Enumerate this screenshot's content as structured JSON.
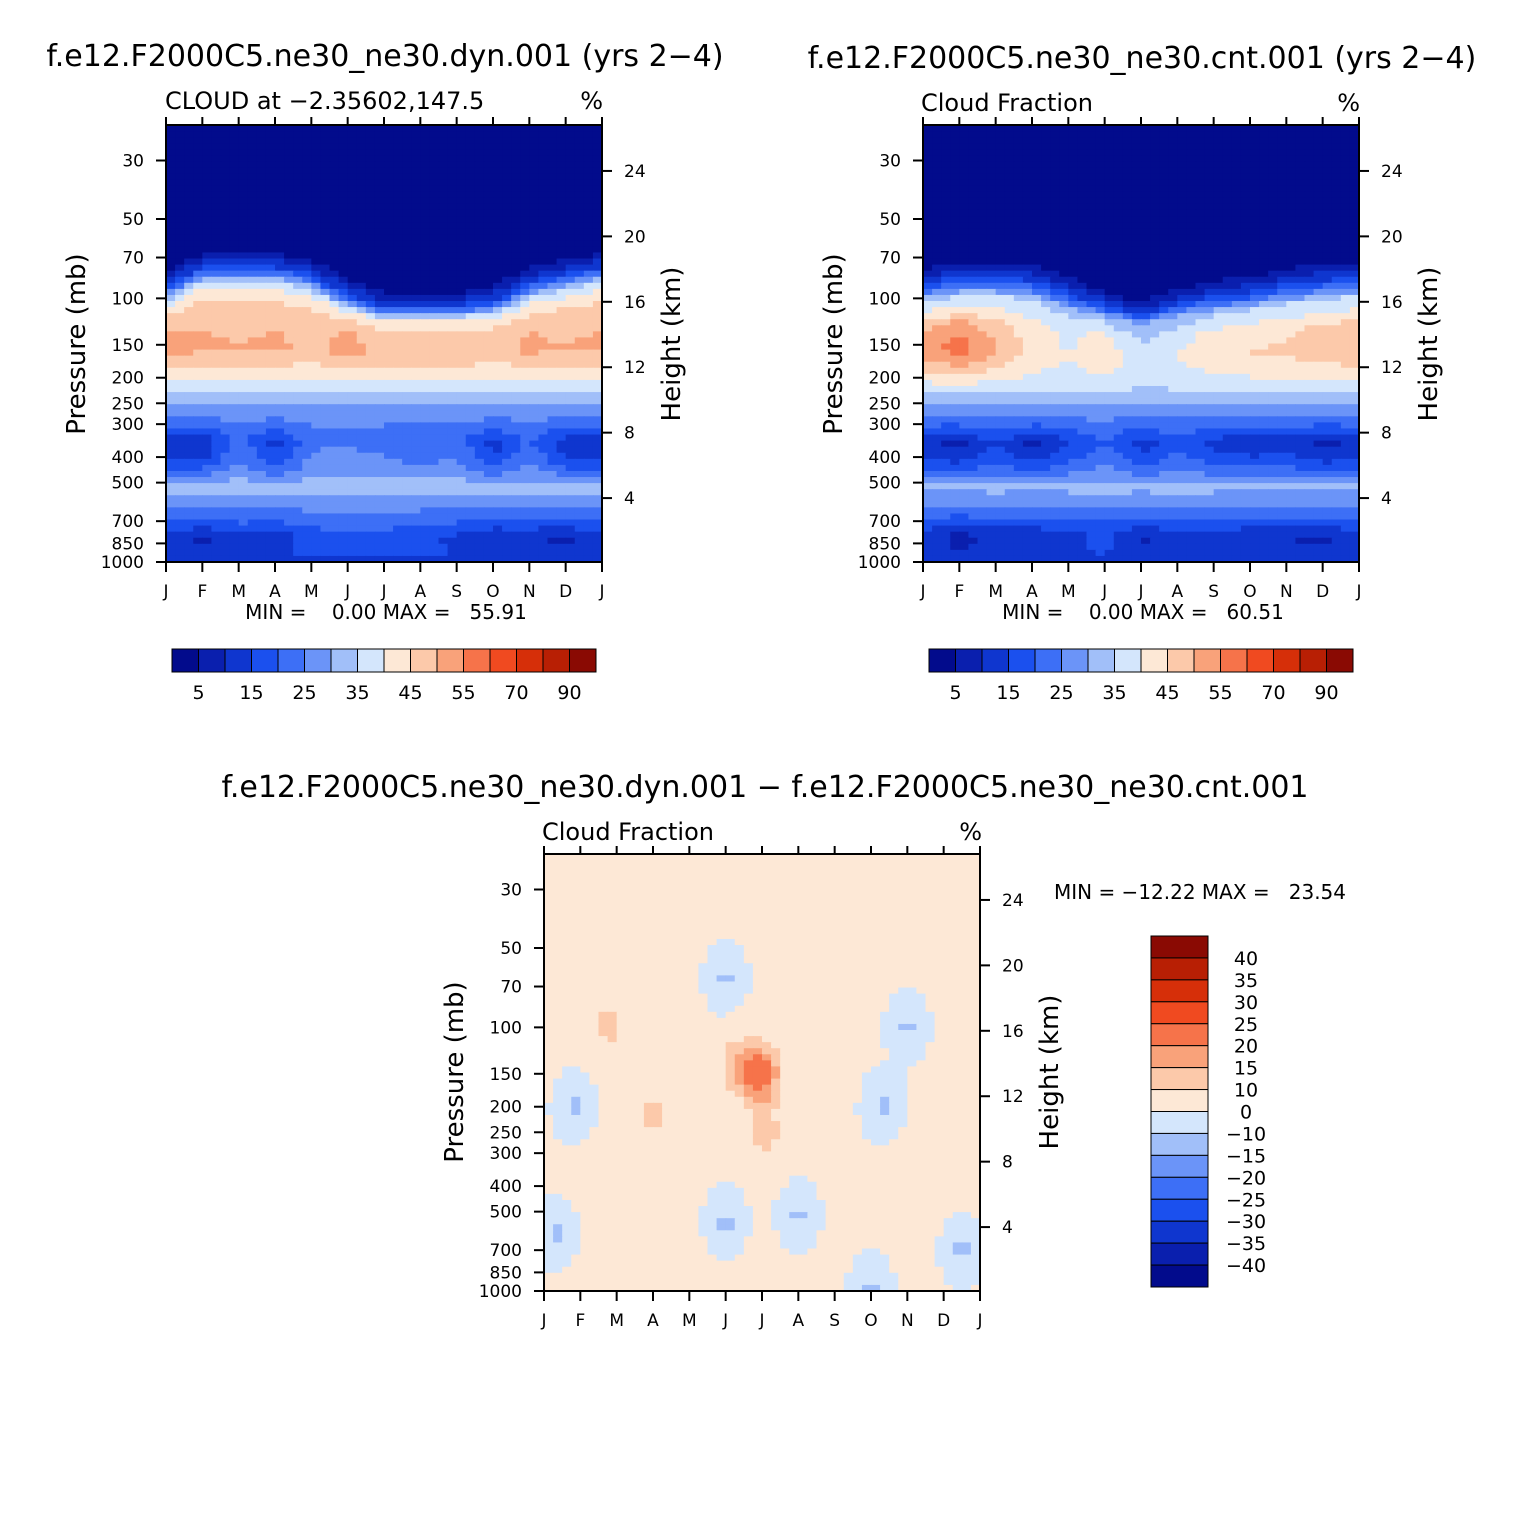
{
  "chart_data": [
    {
      "type": "heatmap",
      "id": "dyn",
      "case_title": "f.e12.F2000C5.ne30_ne30.dyn.001 (yrs 2−4)",
      "left_string": "CLOUD at −2.35602,147.5",
      "right_string": "%",
      "ylabel": "Pressure (mb)",
      "y2label": "Height (km)",
      "pressure_ticks": [
        "30",
        "50",
        "70",
        "100",
        "150",
        "200",
        "250",
        "300",
        "400",
        "500",
        "700",
        "850",
        "1000"
      ],
      "height_ticks": [
        "24",
        "20",
        "16",
        "12",
        "8",
        "4"
      ],
      "month_ticks": [
        "J",
        "F",
        "M",
        "A",
        "M",
        "J",
        "J",
        "A",
        "S",
        "O",
        "N",
        "D",
        "J"
      ],
      "min_max": "MIN =    0.00 MAX =   55.91",
      "colorbar_labels": [
        "5",
        "15",
        "25",
        "35",
        "45",
        "55",
        "70",
        "90"
      ],
      "levels": [
        5,
        10,
        15,
        20,
        25,
        30,
        35,
        40,
        45,
        50,
        55,
        60,
        70,
        80,
        90
      ],
      "min": 0.0,
      "max": 55.91,
      "profile": [
        {
          "p": 30,
          "v": 0
        },
        {
          "p": 60,
          "v": 0
        },
        {
          "p": 75,
          "v": 2
        },
        {
          "p": 90,
          "v": 15
        },
        {
          "p": 105,
          "v": 38
        },
        {
          "p": 125,
          "v": 47
        },
        {
          "p": 160,
          "v": 48
        },
        {
          "p": 200,
          "v": 40
        },
        {
          "p": 250,
          "v": 30
        },
        {
          "p": 350,
          "v": 18
        },
        {
          "p": 450,
          "v": 25
        },
        {
          "p": 520,
          "v": 33
        },
        {
          "p": 650,
          "v": 24
        },
        {
          "p": 800,
          "v": 14
        },
        {
          "p": 950,
          "v": 15
        },
        {
          "p": 1000,
          "v": 12
        }
      ],
      "cap_shape": [
        [
          0,
          0
        ],
        [
          1,
          -5
        ],
        [
          2,
          -5
        ],
        [
          3,
          -5
        ],
        [
          4,
          -3
        ],
        [
          5,
          2
        ],
        [
          6,
          6
        ],
        [
          7,
          6
        ],
        [
          8,
          6
        ],
        [
          9,
          4
        ],
        [
          10,
          -1
        ],
        [
          11,
          -3
        ],
        [
          12,
          -5
        ]
      ],
      "upper_shape": [
        [
          0,
          3
        ],
        [
          1,
          3
        ],
        [
          2,
          2
        ],
        [
          3,
          3
        ],
        [
          4,
          1
        ],
        [
          5,
          4
        ],
        [
          6,
          0
        ],
        [
          7,
          2
        ],
        [
          8,
          1
        ],
        [
          9,
          -1
        ],
        [
          10,
          3
        ],
        [
          11,
          2
        ],
        [
          12,
          3
        ]
      ],
      "mid_shape": [
        [
          0,
          -8
        ],
        [
          1,
          -8
        ],
        [
          2,
          4
        ],
        [
          3,
          -6
        ],
        [
          4,
          5
        ],
        [
          5,
          6
        ],
        [
          6,
          4
        ],
        [
          7,
          2
        ],
        [
          8,
          4
        ],
        [
          9,
          -6
        ],
        [
          10,
          3
        ],
        [
          11,
          -7
        ],
        [
          12,
          -8
        ]
      ],
      "low_shape": [
        [
          0,
          0
        ],
        [
          1,
          -5
        ],
        [
          2,
          0
        ],
        [
          3,
          -2
        ],
        [
          4,
          3
        ],
        [
          5,
          5
        ],
        [
          6,
          4
        ],
        [
          7,
          2
        ],
        [
          8,
          0
        ],
        [
          9,
          -4
        ],
        [
          10,
          -3
        ],
        [
          11,
          -5
        ],
        [
          12,
          0
        ]
      ]
    },
    {
      "type": "heatmap",
      "id": "cnt",
      "case_title": "f.e12.F2000C5.ne30_ne30.cnt.001 (yrs 2−4)",
      "left_string": "Cloud Fraction",
      "right_string": "%",
      "ylabel": "Pressure (mb)",
      "y2label": "Height (km)",
      "pressure_ticks": [
        "30",
        "50",
        "70",
        "100",
        "150",
        "200",
        "250",
        "300",
        "400",
        "500",
        "700",
        "850",
        "1000"
      ],
      "height_ticks": [
        "24",
        "20",
        "16",
        "12",
        "8",
        "4"
      ],
      "month_ticks": [
        "J",
        "F",
        "M",
        "A",
        "M",
        "J",
        "J",
        "A",
        "S",
        "O",
        "N",
        "D",
        "J"
      ],
      "min_max": "MIN =    0.00 MAX =   60.51",
      "colorbar_labels": [
        "5",
        "15",
        "25",
        "35",
        "45",
        "55",
        "70",
        "90"
      ],
      "levels": [
        5,
        10,
        15,
        20,
        25,
        30,
        35,
        40,
        45,
        50,
        55,
        60,
        70,
        80,
        90
      ],
      "min": 0.0,
      "max": 60.51,
      "profile": [
        {
          "p": 30,
          "v": 0
        },
        {
          "p": 60,
          "v": 0
        },
        {
          "p": 75,
          "v": 3
        },
        {
          "p": 90,
          "v": 16
        },
        {
          "p": 105,
          "v": 35
        },
        {
          "p": 130,
          "v": 44
        },
        {
          "p": 160,
          "v": 46
        },
        {
          "p": 200,
          "v": 40
        },
        {
          "p": 250,
          "v": 30
        },
        {
          "p": 350,
          "v": 16
        },
        {
          "p": 450,
          "v": 24
        },
        {
          "p": 520,
          "v": 32
        },
        {
          "p": 650,
          "v": 22
        },
        {
          "p": 800,
          "v": 13
        },
        {
          "p": 950,
          "v": 14
        },
        {
          "p": 1000,
          "v": 12
        }
      ],
      "cap_shape": [
        [
          0,
          0
        ],
        [
          1,
          -2
        ],
        [
          2,
          -2
        ],
        [
          3,
          -1
        ],
        [
          4,
          2
        ],
        [
          5,
          6
        ],
        [
          6,
          9
        ],
        [
          7,
          5
        ],
        [
          8,
          3
        ],
        [
          9,
          2
        ],
        [
          10,
          0
        ],
        [
          11,
          -1
        ],
        [
          12,
          -2
        ]
      ],
      "upper_shape": [
        [
          0,
          6
        ],
        [
          1,
          12
        ],
        [
          2,
          4
        ],
        [
          3,
          -2
        ],
        [
          4,
          -6
        ],
        [
          5,
          -2
        ],
        [
          6,
          -10
        ],
        [
          7,
          -6
        ],
        [
          8,
          -3
        ],
        [
          9,
          -1
        ],
        [
          10,
          0
        ],
        [
          11,
          2
        ],
        [
          12,
          4
        ]
      ],
      "mid_shape": [
        [
          0,
          -6
        ],
        [
          1,
          -8
        ],
        [
          2,
          -1
        ],
        [
          3,
          -8
        ],
        [
          4,
          -2
        ],
        [
          5,
          4
        ],
        [
          6,
          -4
        ],
        [
          7,
          2
        ],
        [
          8,
          -3
        ],
        [
          9,
          -5
        ],
        [
          10,
          -4
        ],
        [
          11,
          -8
        ],
        [
          12,
          -6
        ]
      ],
      "low_shape": [
        [
          0,
          0
        ],
        [
          1,
          -5
        ],
        [
          2,
          -2
        ],
        [
          3,
          -2
        ],
        [
          4,
          0
        ],
        [
          5,
          3
        ],
        [
          6,
          -4
        ],
        [
          7,
          0
        ],
        [
          8,
          0
        ],
        [
          9,
          -2
        ],
        [
          10,
          -3
        ],
        [
          11,
          -4
        ],
        [
          12,
          0
        ]
      ]
    },
    {
      "type": "heatmap",
      "id": "diff",
      "case_title": "f.e12.F2000C5.ne30_ne30.dyn.001 − f.e12.F2000C5.ne30_ne30.cnt.001",
      "left_string": "Cloud Fraction",
      "right_string": "%",
      "ylabel": "Pressure (mb)",
      "y2label": "Height (km)",
      "pressure_ticks": [
        "30",
        "50",
        "70",
        "100",
        "150",
        "200",
        "250",
        "300",
        "400",
        "500",
        "700",
        "850",
        "1000"
      ],
      "height_ticks": [
        "24",
        "20",
        "16",
        "12",
        "8",
        "4"
      ],
      "month_ticks": [
        "J",
        "F",
        "M",
        "A",
        "M",
        "J",
        "J",
        "A",
        "S",
        "O",
        "N",
        "D",
        "J"
      ],
      "min_max": "MIN = −12.22 MAX =   23.54",
      "colorbar_labels": [
        "40",
        "35",
        "30",
        "25",
        "20",
        "15",
        "10",
        "0",
        "−10",
        "−15",
        "−20",
        "−25",
        "−30",
        "−35",
        "−40"
      ],
      "levels": [
        -40,
        -35,
        -30,
        -25,
        -20,
        -15,
        -10,
        0,
        10,
        15,
        20,
        25,
        30,
        35,
        40
      ],
      "min": -12.22,
      "max": 23.54,
      "anomalies": [
        {
          "m": 6.0,
          "p": 150,
          "v": 22
        },
        {
          "m": 5.3,
          "p": 140,
          "v": 14
        },
        {
          "m": 6.1,
          "p": 260,
          "v": 12
        },
        {
          "m": 3.0,
          "p": 215,
          "v": 12
        },
        {
          "m": 1.8,
          "p": 98,
          "v": 12
        },
        {
          "m": 0.8,
          "p": 200,
          "v": -11
        },
        {
          "m": 10.0,
          "p": 100,
          "v": -11
        },
        {
          "m": 9.3,
          "p": 200,
          "v": -11
        },
        {
          "m": 5.0,
          "p": 65,
          "v": -11
        },
        {
          "m": 0.3,
          "p": 600,
          "v": -11
        },
        {
          "m": 5.0,
          "p": 550,
          "v": -11
        },
        {
          "m": 7.0,
          "p": 520,
          "v": -11
        },
        {
          "m": 11.5,
          "p": 700,
          "v": -11
        },
        {
          "m": 9.0,
          "p": 980,
          "v": -11
        }
      ]
    }
  ],
  "palette": [
    "#020b8c",
    "#0a1fae",
    "#0f36cf",
    "#1b50ee",
    "#3d6ff6",
    "#6b94f8",
    "#a1bff9",
    "#d4e6fc",
    "#fde8d6",
    "#fcc9aa",
    "#f9a27a",
    "#f6734a",
    "#f04a20",
    "#d62f09",
    "#b81f04",
    "#8a0a03"
  ]
}
